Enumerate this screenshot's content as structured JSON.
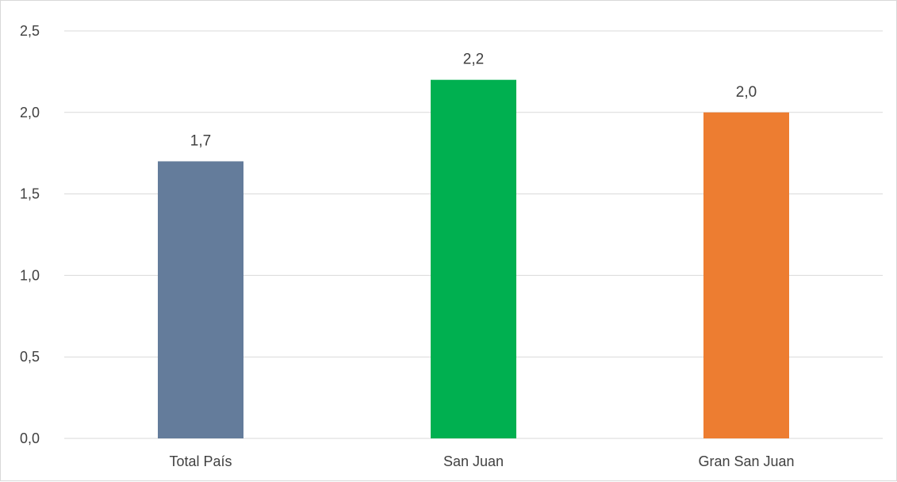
{
  "chart_data": {
    "type": "bar",
    "title": "",
    "xlabel": "",
    "ylabel": "",
    "categories": [
      "Total País",
      "San Juan",
      "Gran San Juan"
    ],
    "values": [
      1.7,
      2.2,
      2.0
    ],
    "data_labels": [
      "1,7",
      "2,2",
      "2,0"
    ],
    "colors": [
      "#647c9b",
      "#00b050",
      "#ed7d31"
    ],
    "ylim": [
      0,
      2.5
    ],
    "yticks": [
      0,
      0.5,
      1.0,
      1.5,
      2.0,
      2.5
    ],
    "ytick_labels": [
      "0,0",
      "0,5",
      "1,0",
      "1,5",
      "2,0",
      "2,5"
    ],
    "grid": true,
    "legend": "none"
  }
}
